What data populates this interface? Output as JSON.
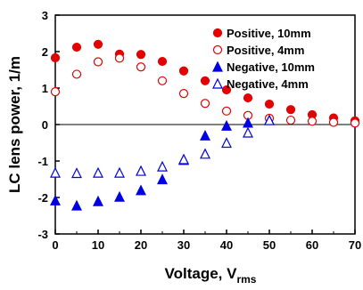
{
  "chart_data": {
    "type": "scatter",
    "xlabel": "Voltage, V",
    "xlabel_sub": "rms",
    "ylabel": "LC lens power, 1/m",
    "xlim": [
      0,
      70
    ],
    "ylim": [
      -3,
      3
    ],
    "x_ticks": [
      "0",
      "10",
      "20",
      "30",
      "40",
      "50",
      "60",
      "70"
    ],
    "y_ticks": [
      "-3",
      "-2",
      "-1",
      "0",
      "1",
      "2",
      "3"
    ],
    "legend_position": "top-right",
    "series": [
      {
        "name": "Positive, 10mm",
        "marker": "circle",
        "filled": true,
        "color": "#e30000",
        "points": [
          [
            0,
            1.83
          ],
          [
            5,
            2.12
          ],
          [
            10,
            2.2
          ],
          [
            15,
            1.93
          ],
          [
            20,
            1.92
          ],
          [
            25,
            1.73
          ],
          [
            30,
            1.47
          ],
          [
            35,
            1.2
          ],
          [
            40,
            0.95
          ],
          [
            45,
            0.73
          ],
          [
            50,
            0.56
          ],
          [
            55,
            0.41
          ],
          [
            60,
            0.27
          ],
          [
            65,
            0.18
          ],
          [
            70,
            0.1
          ]
        ]
      },
      {
        "name": "Positive, 4mm",
        "marker": "circle",
        "filled": false,
        "color": "#e30000",
        "points": [
          [
            0,
            0.9
          ],
          [
            5,
            1.38
          ],
          [
            10,
            1.72
          ],
          [
            15,
            1.82
          ],
          [
            20,
            1.58
          ],
          [
            25,
            1.2
          ],
          [
            30,
            0.85
          ],
          [
            35,
            0.58
          ],
          [
            40,
            0.37
          ],
          [
            45,
            0.25
          ],
          [
            50,
            0.17
          ],
          [
            55,
            0.12
          ],
          [
            60,
            0.09
          ],
          [
            65,
            0.06
          ],
          [
            70,
            0.04
          ]
        ]
      },
      {
        "name": "Negative, 10mm",
        "marker": "triangle",
        "filled": true,
        "color": "#0000e6",
        "points": [
          [
            0,
            -2.08
          ],
          [
            5,
            -2.22
          ],
          [
            10,
            -2.1
          ],
          [
            15,
            -1.98
          ],
          [
            20,
            -1.8
          ],
          [
            25,
            -1.5
          ],
          [
            30,
            -0.97
          ],
          [
            35,
            -0.3
          ],
          [
            40,
            -0.03
          ],
          [
            45,
            0.05
          ],
          [
            50,
            0.12
          ]
        ]
      },
      {
        "name": "Negative, 4mm",
        "marker": "triangle",
        "filled": false,
        "color": "#0000e6",
        "points": [
          [
            0,
            -1.32
          ],
          [
            5,
            -1.33
          ],
          [
            10,
            -1.32
          ],
          [
            15,
            -1.32
          ],
          [
            20,
            -1.27
          ],
          [
            25,
            -1.15
          ],
          [
            30,
            -0.95
          ],
          [
            35,
            -0.8
          ],
          [
            40,
            -0.5
          ],
          [
            45,
            -0.22
          ],
          [
            50,
            0.12
          ]
        ]
      }
    ]
  }
}
